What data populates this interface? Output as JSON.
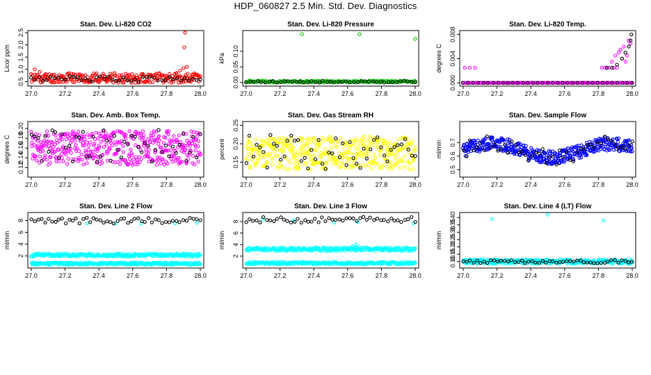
{
  "title": "HDP_060827  2.5 Min. Std. Dev. Diagnostics",
  "chart_data": [
    {
      "type": "scatter",
      "id": "co2",
      "title": "Stan. Dev. Li-820 CO2",
      "ylabel": "Licor ppm",
      "xlim": [
        27.0,
        28.0
      ],
      "ylim": [
        0.4,
        2.5
      ],
      "xticks": [
        "27.0",
        "27.2",
        "27.4",
        "27.6",
        "27.8",
        "28.0"
      ],
      "yticks": [
        "0.5",
        "1.0",
        "1.5",
        "2.0",
        "2.5"
      ],
      "series": [
        {
          "color": "#ff0000",
          "gen": {
            "kind": "band",
            "n": 260,
            "lo": 0.45,
            "hi": 0.85,
            "seed": 11
          },
          "extra": [
            [
              27.02,
              1.0
            ],
            [
              27.05,
              0.9
            ],
            [
              27.88,
              0.95
            ],
            [
              27.9,
              1.05
            ],
            [
              27.92,
              1.1
            ],
            [
              27.905,
              1.9
            ],
            [
              27.91,
              2.5
            ],
            [
              27.86,
              0.85
            ]
          ]
        },
        {
          "color": "#000000",
          "gen": {
            "kind": "band",
            "n": 45,
            "lo": 0.5,
            "hi": 0.72,
            "seed": 12
          }
        }
      ]
    },
    {
      "type": "scatter",
      "id": "pressure",
      "title": "Stan. Dev. Li-820 Pressure",
      "ylabel": "kPa",
      "xlim": [
        27.0,
        28.0
      ],
      "ylim": [
        -0.005,
        0.16
      ],
      "xticks": [
        "27.0",
        "27.2",
        "27.4",
        "27.6",
        "27.8",
        "28.0"
      ],
      "yticks": [
        "0.00",
        "0.05",
        "0.10"
      ],
      "series": [
        {
          "color": "#00cc00",
          "gen": {
            "kind": "band",
            "n": 200,
            "lo": 0.0,
            "hi": 0.006,
            "seed": 21
          },
          "extra": [
            [
              27.33,
              0.155
            ],
            [
              27.67,
              0.155
            ],
            [
              28.0,
              0.14
            ]
          ]
        },
        {
          "color": "#000000",
          "gen": {
            "kind": "band",
            "n": 45,
            "lo": 0.0,
            "hi": 0.005,
            "seed": 22
          }
        }
      ]
    },
    {
      "type": "scatter",
      "id": "temp",
      "title": "Stan. Dev. Li-820 Temp.",
      "ylabel": "degrees C",
      "xlim": [
        27.0,
        28.0
      ],
      "ylim": [
        -0.0002,
        0.0083
      ],
      "xticks": [
        "27.0",
        "27.2",
        "27.4",
        "27.6",
        "27.8",
        "28.0"
      ],
      "yticks": [
        "0.000",
        "0.004",
        "0.008"
      ],
      "series": [
        {
          "color": "#ff00ff",
          "gen": {
            "kind": "band",
            "n": 170,
            "lo": 0.0,
            "hi": 0.0,
            "seed": 31
          },
          "extra": [
            [
              27.01,
              0.0025
            ],
            [
              27.04,
              0.0025
            ],
            [
              27.07,
              0.0025
            ],
            [
              27.82,
              0.0025
            ],
            [
              27.84,
              0.0025
            ],
            [
              27.86,
              0.0025
            ],
            [
              27.88,
              0.0035
            ],
            [
              27.9,
              0.0045
            ],
            [
              27.92,
              0.005
            ],
            [
              27.93,
              0.0055
            ],
            [
              27.95,
              0.006
            ],
            [
              27.96,
              0.0035
            ],
            [
              27.98,
              0.007
            ],
            [
              27.99,
              0.0065
            ],
            [
              27.97,
              0.0045
            ],
            [
              27.94,
              0.004
            ],
            [
              27.91,
              0.0025
            ],
            [
              27.89,
              0.0025
            ]
          ]
        },
        {
          "color": "#000000",
          "gen": {
            "kind": "band",
            "n": 35,
            "lo": 0.0,
            "hi": 0.0,
            "seed": 32
          },
          "extra": [
            [
              27.85,
              0.0025
            ],
            [
              27.88,
              0.0025
            ],
            [
              27.91,
              0.003
            ],
            [
              27.94,
              0.004
            ],
            [
              27.96,
              0.005
            ],
            [
              27.98,
              0.006
            ],
            [
              27.99,
              0.007
            ],
            [
              27.995,
              0.008
            ]
          ]
        }
      ]
    },
    {
      "type": "scatter",
      "id": "ambbox",
      "title": "Stan. Dev. Amb. Box Temp.",
      "ylabel": "degrees C",
      "xlim": [
        27.0,
        28.0
      ],
      "ylim": [
        0.105,
        0.21
      ],
      "xticks": [
        "27.0",
        "27.2",
        "27.4",
        "27.6",
        "27.8",
        "28.0"
      ],
      "yticks": [
        "0.12",
        "0.14",
        "0.16",
        "0.18",
        "0.20"
      ],
      "series": [
        {
          "color": "#ff00ff",
          "gen": {
            "kind": "band",
            "n": 420,
            "lo": 0.125,
            "hi": 0.195,
            "seed": 41
          }
        },
        {
          "color": "#000000",
          "gen": {
            "kind": "band",
            "n": 50,
            "lo": 0.13,
            "hi": 0.2,
            "seed": 42
          }
        }
      ]
    },
    {
      "type": "scatter",
      "id": "rh",
      "title": "Stan. Dev. Gas Stream RH",
      "ylabel": "percent",
      "xlim": [
        27.0,
        28.0
      ],
      "ylim": [
        0.115,
        0.255
      ],
      "xticks": [
        "27.0",
        "27.2",
        "27.4",
        "27.6",
        "27.8",
        "28.0"
      ],
      "yticks": [
        "0.15",
        "0.20",
        "0.25"
      ],
      "series": [
        {
          "color": "#ffff00",
          "gen": {
            "kind": "band",
            "n": 400,
            "lo": 0.13,
            "hi": 0.22,
            "seed": 51
          }
        },
        {
          "color": "#000000",
          "gen": {
            "kind": "band",
            "n": 50,
            "lo": 0.13,
            "hi": 0.23,
            "seed": 52
          }
        }
      ]
    },
    {
      "type": "scatter",
      "id": "sampleflow",
      "title": "Stan. Dev. Sample Flow",
      "ylabel": "ml/min",
      "xlim": [
        27.0,
        28.0
      ],
      "ylim": [
        0.46,
        0.84
      ],
      "xticks": [
        "27.0",
        "27.2",
        "27.4",
        "27.6",
        "27.8",
        "28.0"
      ],
      "yticks": [
        "0.5",
        "0.6",
        "0.7"
      ],
      "series": [
        {
          "color": "#0000ff",
          "gen": {
            "kind": "wave",
            "n": 420,
            "base": 0.64,
            "amp": 0.05,
            "noise": 0.05,
            "seed": 61
          }
        },
        {
          "color": "#000000",
          "gen": {
            "kind": "wave",
            "n": 50,
            "base": 0.64,
            "amp": 0.05,
            "noise": 0.06,
            "seed": 62
          }
        }
      ]
    },
    {
      "type": "scatter",
      "id": "line2",
      "title": "Stan. Dev. Line 2 Flow",
      "ylabel": "ml/min",
      "xlim": [
        27.0,
        28.0
      ],
      "ylim": [
        0.3,
        9.0
      ],
      "xticks": [
        "27.0",
        "27.2",
        "27.4",
        "27.6",
        "27.8",
        "28.0"
      ],
      "yticks": [
        "2",
        "4",
        "6",
        "8"
      ],
      "series": [
        {
          "color": "#00ffff",
          "gen": {
            "kind": "band",
            "n": 260,
            "lo": 1.9,
            "hi": 2.4,
            "seed": 71
          }
        },
        {
          "color": "#00ffff",
          "gen": {
            "kind": "band",
            "n": 260,
            "lo": 0.5,
            "hi": 0.9,
            "seed": 72
          },
          "extra": [
            [
              27.33,
              7.5
            ],
            [
              27.5,
              7.5
            ],
            [
              27.65,
              7.5
            ],
            [
              27.85,
              7.5
            ],
            [
              27.98,
              7.6
            ]
          ]
        },
        {
          "color": "#000000",
          "gen": {
            "kind": "band",
            "n": 50,
            "lo": 7.4,
            "hi": 8.5,
            "seed": 73
          }
        }
      ]
    },
    {
      "type": "scatter",
      "id": "line3",
      "title": "Stan. Dev. Line 3 Flow",
      "ylabel": "ml/min",
      "xlim": [
        27.0,
        28.0
      ],
      "ylim": [
        0.3,
        9.2
      ],
      "xticks": [
        "27.0",
        "27.2",
        "27.4",
        "27.6",
        "27.8",
        "28.0"
      ],
      "yticks": [
        "2",
        "4",
        "6",
        "8"
      ],
      "series": [
        {
          "color": "#00ffff",
          "gen": {
            "kind": "band",
            "n": 260,
            "lo": 2.9,
            "hi": 3.5,
            "seed": 81
          },
          "extra": [
            [
              27.65,
              4.0
            ],
            [
              27.63,
              3.7
            ],
            [
              27.67,
              3.6
            ]
          ]
        },
        {
          "color": "#00ffff",
          "gen": {
            "kind": "band",
            "n": 260,
            "lo": 0.6,
            "hi": 1.0,
            "seed": 82
          },
          "extra": [
            [
              27.1,
              8.4
            ],
            [
              27.28,
              8.2
            ],
            [
              27.52,
              7.8
            ],
            [
              27.66,
              7.9
            ],
            [
              27.99,
              7.7
            ]
          ]
        },
        {
          "color": "#000000",
          "gen": {
            "kind": "band",
            "n": 50,
            "lo": 7.8,
            "hi": 8.8,
            "seed": 83
          }
        }
      ]
    },
    {
      "type": "scatter",
      "id": "line4",
      "title": "Stan. Dev. Line 4 (LT) Flow",
      "ylabel": "ml/min",
      "xlim": [
        27.0,
        28.0
      ],
      "ylim": [
        0.07,
        0.42
      ],
      "xticks": [
        "27.0",
        "27.2",
        "27.4",
        "27.6",
        "27.8",
        "28.0"
      ],
      "yticks": [
        "0.10",
        "0.15",
        "0.20",
        "0.25",
        "0.30",
        "0.35",
        "0.40"
      ],
      "series": [
        {
          "color": "#00ffff",
          "gen": {
            "kind": "band",
            "n": 320,
            "lo": 0.085,
            "hi": 0.115,
            "seed": 91
          },
          "extra": [
            [
              27.17,
              0.39
            ],
            [
              27.5,
              0.42
            ],
            [
              27.83,
              0.38
            ]
          ]
        },
        {
          "color": "#000000",
          "gen": {
            "kind": "band",
            "n": 50,
            "lo": 0.088,
            "hi": 0.11,
            "seed": 92
          }
        }
      ]
    }
  ]
}
